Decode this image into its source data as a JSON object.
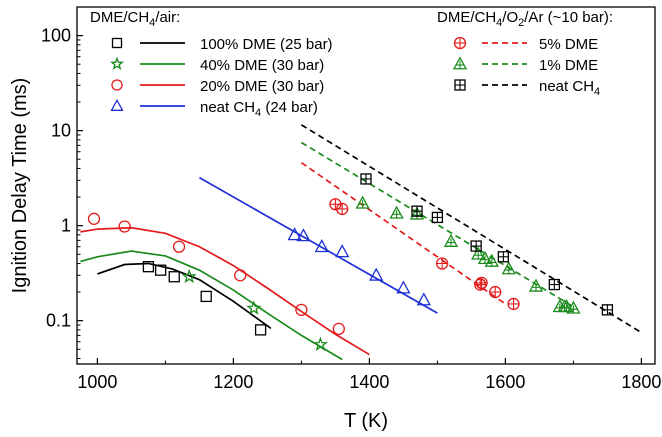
{
  "chart_data": {
    "type": "scatter",
    "xlabel": "T (K)",
    "ylabel": "Ignition Delay Time (ms)",
    "xlim": [
      970,
      1820
    ],
    "ylim": [
      0.035,
      200
    ],
    "yscale": "log",
    "x_ticks": [
      1000,
      1200,
      1400,
      1600,
      1800
    ],
    "y_ticks": [
      {
        "value": 0.1,
        "label": "0.1"
      },
      {
        "value": 1,
        "label": "1"
      },
      {
        "value": 10,
        "label": "10"
      },
      {
        "value": 100,
        "label": "100"
      }
    ],
    "grid": false,
    "legend_left": {
      "title": "DME/CH",
      "title_sub": "4",
      "title_tail": "/air:",
      "entries": [
        {
          "label": "100% DME (25 bar)",
          "marker": "square",
          "color": "#000000"
        },
        {
          "label": "40% DME (30 bar)",
          "marker": "star",
          "color": "#1a8a1a"
        },
        {
          "label": "20% DME (30 bar)",
          "marker": "circle",
          "color": "#e41a1c"
        },
        {
          "label": "neat CH",
          "label_sub": "4",
          "label_tail": " (24 bar)",
          "marker": "triangle",
          "color": "#1f2fd6"
        }
      ]
    },
    "legend_right": {
      "title_parts": [
        "DME/CH",
        "4",
        "/O",
        "2",
        "/Ar (~10 bar):"
      ],
      "entries": [
        {
          "label": "5% DME",
          "marker": "circle-plus",
          "color": "#e41a1c"
        },
        {
          "label": "1% DME",
          "marker": "triangle-plus",
          "color": "#1a8a1a"
        },
        {
          "label": "neat CH",
          "label_sub": "4",
          "marker": "square-plus",
          "color": "#000000"
        }
      ]
    },
    "series": [
      {
        "name": "100% DME (25 bar)",
        "color": "#000000",
        "marker": "square",
        "points": [
          [
            1075,
            0.37
          ],
          [
            1093,
            0.34
          ],
          [
            1113,
            0.29
          ],
          [
            1160,
            0.18
          ],
          [
            1240,
            0.08
          ]
        ],
        "line": [
          [
            1000,
            0.31
          ],
          [
            1040,
            0.39
          ],
          [
            1075,
            0.4
          ],
          [
            1110,
            0.35
          ],
          [
            1150,
            0.27
          ],
          [
            1200,
            0.16
          ],
          [
            1255,
            0.083
          ]
        ],
        "dash": false
      },
      {
        "name": "40% DME (30 bar)",
        "color": "#1a8a1a",
        "marker": "star",
        "points": [
          [
            1135,
            0.29
          ],
          [
            1230,
            0.135
          ],
          [
            1328,
            0.056
          ]
        ],
        "line": [
          [
            975,
            0.42
          ],
          [
            1000,
            0.47
          ],
          [
            1050,
            0.54
          ],
          [
            1100,
            0.48
          ],
          [
            1150,
            0.34
          ],
          [
            1200,
            0.21
          ],
          [
            1250,
            0.12
          ],
          [
            1300,
            0.07
          ],
          [
            1350,
            0.043
          ],
          [
            1360,
            0.039
          ]
        ],
        "dash": false
      },
      {
        "name": "20% DME (30 bar)",
        "color": "#e41a1c",
        "marker": "circle",
        "points": [
          [
            995,
            1.18
          ],
          [
            1040,
            0.98
          ],
          [
            1120,
            0.6
          ],
          [
            1210,
            0.3
          ],
          [
            1300,
            0.13
          ],
          [
            1355,
            0.082
          ]
        ],
        "line": [
          [
            975,
            0.86
          ],
          [
            1000,
            0.92
          ],
          [
            1050,
            0.95
          ],
          [
            1100,
            0.83
          ],
          [
            1150,
            0.6
          ],
          [
            1200,
            0.38
          ],
          [
            1250,
            0.22
          ],
          [
            1300,
            0.125
          ],
          [
            1350,
            0.072
          ],
          [
            1400,
            0.044
          ]
        ],
        "dash": false
      },
      {
        "name": "neat CH4 (24 bar)",
        "color": "#1f2fd6",
        "marker": "triangle",
        "points": [
          [
            1290,
            0.8
          ],
          [
            1303,
            0.78
          ],
          [
            1330,
            0.6
          ],
          [
            1360,
            0.53
          ],
          [
            1410,
            0.3
          ],
          [
            1450,
            0.22
          ],
          [
            1480,
            0.165
          ]
        ],
        "line": [
          [
            1150,
            3.2
          ],
          [
            1500,
            0.12
          ]
        ],
        "dash": false
      },
      {
        "name": "5% DME",
        "color": "#e41a1c",
        "marker": "circle-plus",
        "points": [
          [
            1350,
            1.68
          ],
          [
            1360,
            1.5
          ],
          [
            1507,
            0.4
          ],
          [
            1563,
            0.24
          ],
          [
            1565,
            0.25
          ],
          [
            1585,
            0.2
          ],
          [
            1612,
            0.15
          ]
        ],
        "line": [
          [
            1300,
            4.6
          ],
          [
            1600,
            0.15
          ]
        ],
        "dash": true
      },
      {
        "name": "1% DME",
        "color": "#1a8a1a",
        "marker": "triangle-plus",
        "points": [
          [
            1390,
            1.72
          ],
          [
            1440,
            1.35
          ],
          [
            1470,
            1.32
          ],
          [
            1520,
            0.68
          ],
          [
            1560,
            0.5
          ],
          [
            1570,
            0.45
          ],
          [
            1580,
            0.42
          ],
          [
            1605,
            0.35
          ],
          [
            1645,
            0.23
          ],
          [
            1680,
            0.14
          ],
          [
            1687,
            0.14
          ],
          [
            1690,
            0.14
          ],
          [
            1700,
            0.135
          ]
        ],
        "line": [
          [
            1300,
            7.5
          ],
          [
            1700,
            0.14
          ]
        ],
        "dash": true
      },
      {
        "name": "neat CH4",
        "color": "#000000",
        "marker": "square-plus",
        "points": [
          [
            1395,
            3.1
          ],
          [
            1470,
            1.42
          ],
          [
            1500,
            1.22
          ],
          [
            1557,
            0.61
          ],
          [
            1597,
            0.47
          ],
          [
            1672,
            0.24
          ],
          [
            1750,
            0.13
          ]
        ],
        "line": [
          [
            1300,
            11.5
          ],
          [
            1800,
            0.075
          ]
        ],
        "dash": true
      }
    ]
  }
}
